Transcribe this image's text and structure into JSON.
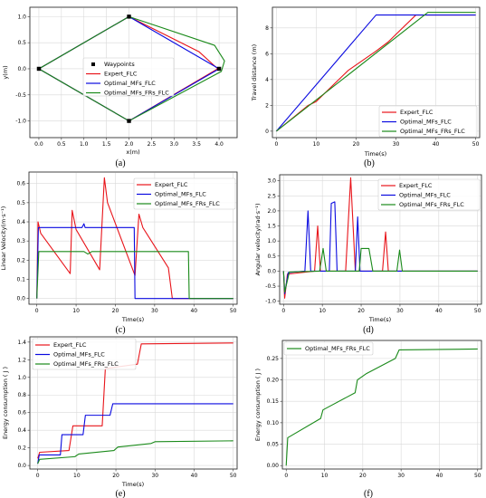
{
  "colors": {
    "red": "#e8141a",
    "blue": "#0a0ae0",
    "green": "#1a8a1a",
    "grid": "#d9d9d9",
    "waypoint": "#000000"
  },
  "chart_data": [
    {
      "panel": "a",
      "caption": "(a)",
      "type": "line",
      "xlabel": "x(m)",
      "ylabel": "y(m)",
      "xlim": [
        -0.2,
        4.4
      ],
      "ylim": [
        -1.32,
        1.18
      ],
      "xticks": [
        "0.0",
        "0.5",
        "1.0",
        "1.5",
        "2.0",
        "2.5",
        "3.0",
        "3.5",
        "4.0"
      ],
      "yticks": [
        "1.0",
        "0.5",
        "0.0",
        "-0.5",
        "-1.0"
      ],
      "grid": true,
      "legend": [
        "Waypoints",
        "Expert_FLC",
        "Optimal_MFs_FLC",
        "Optimal_MFs_FRs_FLC"
      ],
      "waypoints": [
        [
          0,
          0
        ],
        [
          2,
          1
        ],
        [
          4,
          0
        ],
        [
          2,
          -1
        ]
      ],
      "series": [
        {
          "name": "Expert_FLC",
          "points": [
            [
              0,
              0
            ],
            [
              2,
              1
            ],
            [
              3.55,
              0.33
            ],
            [
              3.97,
              0.0
            ],
            [
              2,
              -1
            ],
            [
              0,
              0
            ]
          ]
        },
        {
          "name": "Optimal_MFs_FLC",
          "points": [
            [
              0,
              0
            ],
            [
              2,
              1
            ],
            [
              4,
              0
            ],
            [
              2,
              -1
            ],
            [
              0,
              0
            ]
          ]
        },
        {
          "name": "Optimal_MFs_FRs_FLC",
          "points": [
            [
              0,
              0
            ],
            [
              2,
              1
            ],
            [
              3.9,
              0.45
            ],
            [
              4.12,
              0.15
            ],
            [
              4.05,
              -0.05
            ],
            [
              2,
              -1
            ],
            [
              0,
              0
            ]
          ]
        }
      ]
    },
    {
      "panel": "b",
      "caption": "(b)",
      "type": "line",
      "xlabel": "Time(s)",
      "ylabel": "Travel distance (m)",
      "xlim": [
        -1,
        51
      ],
      "ylim": [
        -0.5,
        9.6
      ],
      "xticks": [
        "0",
        "10",
        "20",
        "30",
        "40",
        "50"
      ],
      "yticks": [
        "0",
        "2",
        "4",
        "6",
        "8"
      ],
      "grid": true,
      "legend": [
        "Expert_FLC",
        "Optimal_MFs_FLC",
        "Optimal_MFs_FRs_FLC"
      ],
      "series": [
        {
          "name": "Expert_FLC",
          "points": [
            [
              0,
              0
            ],
            [
              8,
              2.0
            ],
            [
              10,
              2.3
            ],
            [
              17,
              4.4
            ],
            [
              18,
              4.7
            ],
            [
              25,
              6.2
            ],
            [
              28,
              6.9
            ],
            [
              35,
              9.0
            ],
            [
              50,
              9.0
            ]
          ]
        },
        {
          "name": "Optimal_MFs_FLC",
          "points": [
            [
              0,
              0
            ],
            [
              25,
              9.0
            ],
            [
              50,
              9.0
            ]
          ]
        },
        {
          "name": "Optimal_MFs_FRs_FLC",
          "points": [
            [
              0,
              0
            ],
            [
              38,
              9.2
            ],
            [
              50,
              9.2
            ]
          ]
        }
      ]
    },
    {
      "panel": "c",
      "caption": "(c)",
      "type": "line",
      "xlabel": "Time(s)",
      "ylabel": "Linear Velocity(m·s⁻¹)",
      "xlim": [
        -2,
        51
      ],
      "ylim": [
        -0.03,
        0.66
      ],
      "xticks": [
        "0",
        "10",
        "20",
        "30",
        "40",
        "50"
      ],
      "yticks": [
        "0.0",
        "0.1",
        "0.2",
        "0.3",
        "0.4",
        "0.5",
        "0.6"
      ],
      "grid": true,
      "legend": [
        "Expert_FLC",
        "Optimal_MFs_FLC",
        "Optimal_MFs_FRs_FLC"
      ],
      "series": [
        {
          "name": "Expert_FLC",
          "points": [
            [
              0,
              0
            ],
            [
              0.3,
              0.4
            ],
            [
              1,
              0.34
            ],
            [
              8.5,
              0.13
            ],
            [
              9,
              0.46
            ],
            [
              10,
              0.36
            ],
            [
              16,
              0.15
            ],
            [
              17.2,
              0.63
            ],
            [
              18,
              0.5
            ],
            [
              25,
              0.12
            ],
            [
              26,
              0.44
            ],
            [
              27,
              0.37
            ],
            [
              33.5,
              0.16
            ],
            [
              34.5,
              0.0
            ],
            [
              50,
              0.0
            ]
          ]
        },
        {
          "name": "Optimal_MFs_FLC",
          "points": [
            [
              0,
              0
            ],
            [
              0.4,
              0.37
            ],
            [
              11.5,
              0.37
            ],
            [
              12,
              0.39
            ],
            [
              12.3,
              0.37
            ],
            [
              24.8,
              0.37
            ],
            [
              25,
              0.0
            ],
            [
              50,
              0.0
            ]
          ]
        },
        {
          "name": "Optimal_MFs_FRs_FLC",
          "points": [
            [
              0,
              0
            ],
            [
              0.5,
              0.245
            ],
            [
              12,
              0.245
            ],
            [
              13,
              0.232
            ],
            [
              14,
              0.245
            ],
            [
              38.6,
              0.245
            ],
            [
              38.8,
              0.0
            ],
            [
              50,
              0.0
            ]
          ]
        }
      ]
    },
    {
      "panel": "d",
      "caption": "(d)",
      "type": "line",
      "xlabel": "Time(s)",
      "ylabel": "Angular velocity(rad·s⁻¹)",
      "xlim": [
        -1,
        51
      ],
      "ylim": [
        -1.1,
        3.2
      ],
      "xticks": [
        "0",
        "10",
        "20",
        "30",
        "40",
        "50"
      ],
      "yticks": [
        "3.0",
        "2.5",
        "2.0",
        "1.5",
        "1.0",
        "0.5",
        "0.0",
        "-0.5",
        "-1.0"
      ],
      "grid": true,
      "legend": [
        "Expert_FLC",
        "Optimal_MFs_FLC",
        "Optimal_MFs_FRs_FLC"
      ],
      "series": [
        {
          "name": "Expert_FLC",
          "points": [
            [
              0,
              0
            ],
            [
              0.3,
              -0.9
            ],
            [
              1,
              -0.1
            ],
            [
              8,
              0
            ],
            [
              8.8,
              1.5
            ],
            [
              9.5,
              0
            ],
            [
              16,
              0
            ],
            [
              17.3,
              3.1
            ],
            [
              18.5,
              0
            ],
            [
              25.5,
              0
            ],
            [
              26.3,
              1.3
            ],
            [
              27,
              0
            ],
            [
              50,
              0
            ]
          ]
        },
        {
          "name": "Optimal_MFs_FLC",
          "points": [
            [
              0,
              0
            ],
            [
              0.3,
              -0.75
            ],
            [
              1.2,
              -0.05
            ],
            [
              5.5,
              0
            ],
            [
              6.3,
              2.0
            ],
            [
              7,
              0
            ],
            [
              11.8,
              0
            ],
            [
              12.3,
              2.25
            ],
            [
              13.2,
              2.3
            ],
            [
              13.8,
              0
            ],
            [
              18.5,
              0
            ],
            [
              19.1,
              1.8
            ],
            [
              19.7,
              0
            ],
            [
              50,
              0
            ]
          ]
        },
        {
          "name": "Optimal_MFs_FRs_FLC",
          "points": [
            [
              0,
              0
            ],
            [
              0.3,
              -0.7
            ],
            [
              1.5,
              -0.03
            ],
            [
              9.3,
              0
            ],
            [
              10.2,
              0.75
            ],
            [
              11,
              0
            ],
            [
              19.5,
              0
            ],
            [
              20,
              0.75
            ],
            [
              22,
              0.75
            ],
            [
              23,
              0
            ],
            [
              29.2,
              0
            ],
            [
              29.9,
              0.7
            ],
            [
              30.6,
              0
            ],
            [
              50,
              0
            ]
          ]
        }
      ]
    },
    {
      "panel": "e",
      "caption": "(e)",
      "type": "line",
      "xlabel": "Time(s)",
      "ylabel": "Energy consumption ( J )",
      "xlim": [
        -2,
        51
      ],
      "ylim": [
        -0.04,
        1.46
      ],
      "xticks": [
        "0",
        "10",
        "20",
        "30",
        "40",
        "50"
      ],
      "yticks": [
        "0.0",
        "0.2",
        "0.4",
        "0.6",
        "0.8",
        "1.0",
        "1.2",
        "1.4"
      ],
      "grid": true,
      "legend": [
        "Expert_FLC",
        "Optimal_MFs_FLC",
        "Optimal_MFs_FRs_FLC"
      ],
      "series": [
        {
          "name": "Expert_FLC",
          "points": [
            [
              0,
              0.08
            ],
            [
              0.5,
              0.15
            ],
            [
              8,
              0.17
            ],
            [
              9,
              0.45
            ],
            [
              16.5,
              0.45
            ],
            [
              17.3,
              1.1
            ],
            [
              25.5,
              1.15
            ],
            [
              26.5,
              1.38
            ],
            [
              50,
              1.39
            ]
          ]
        },
        {
          "name": "Optimal_MFs_FLC",
          "points": [
            [
              0,
              0.02
            ],
            [
              0.4,
              0.12
            ],
            [
              5.8,
              0.12
            ],
            [
              6.2,
              0.35
            ],
            [
              11.6,
              0.35
            ],
            [
              12.2,
              0.57
            ],
            [
              18.5,
              0.57
            ],
            [
              19.2,
              0.7
            ],
            [
              50,
              0.7
            ]
          ]
        },
        {
          "name": "Optimal_MFs_FRs_FLC",
          "points": [
            [
              0,
              0.02
            ],
            [
              0.5,
              0.07
            ],
            [
              9.5,
              0.1
            ],
            [
              10.5,
              0.13
            ],
            [
              19.5,
              0.17
            ],
            [
              20.5,
              0.21
            ],
            [
              29,
              0.25
            ],
            [
              30,
              0.27
            ],
            [
              50,
              0.28
            ]
          ]
        }
      ]
    },
    {
      "panel": "f",
      "caption": "(f)",
      "type": "line",
      "xlabel": "",
      "ylabel": "Energy consumption ( J )",
      "xlim": [
        -1,
        51
      ],
      "ylim": [
        -0.008,
        0.292
      ],
      "xticks": [
        "0",
        "10",
        "20",
        "30",
        "40",
        "50"
      ],
      "yticks": [
        "0.00",
        "0.05",
        "0.10",
        "0.15",
        "0.20",
        "0.25"
      ],
      "grid": true,
      "legend": [
        "Optimal_MFs_FRs_FLC"
      ],
      "series": [
        {
          "name": "Optimal_MFs_FRs_FLC",
          "points": [
            [
              0,
              0.0
            ],
            [
              0.4,
              0.065
            ],
            [
              9,
              0.11
            ],
            [
              9.6,
              0.13
            ],
            [
              18,
              0.17
            ],
            [
              18.6,
              0.2
            ],
            [
              21,
              0.215
            ],
            [
              28.5,
              0.25
            ],
            [
              29.5,
              0.27
            ],
            [
              50,
              0.272
            ]
          ]
        }
      ]
    }
  ]
}
